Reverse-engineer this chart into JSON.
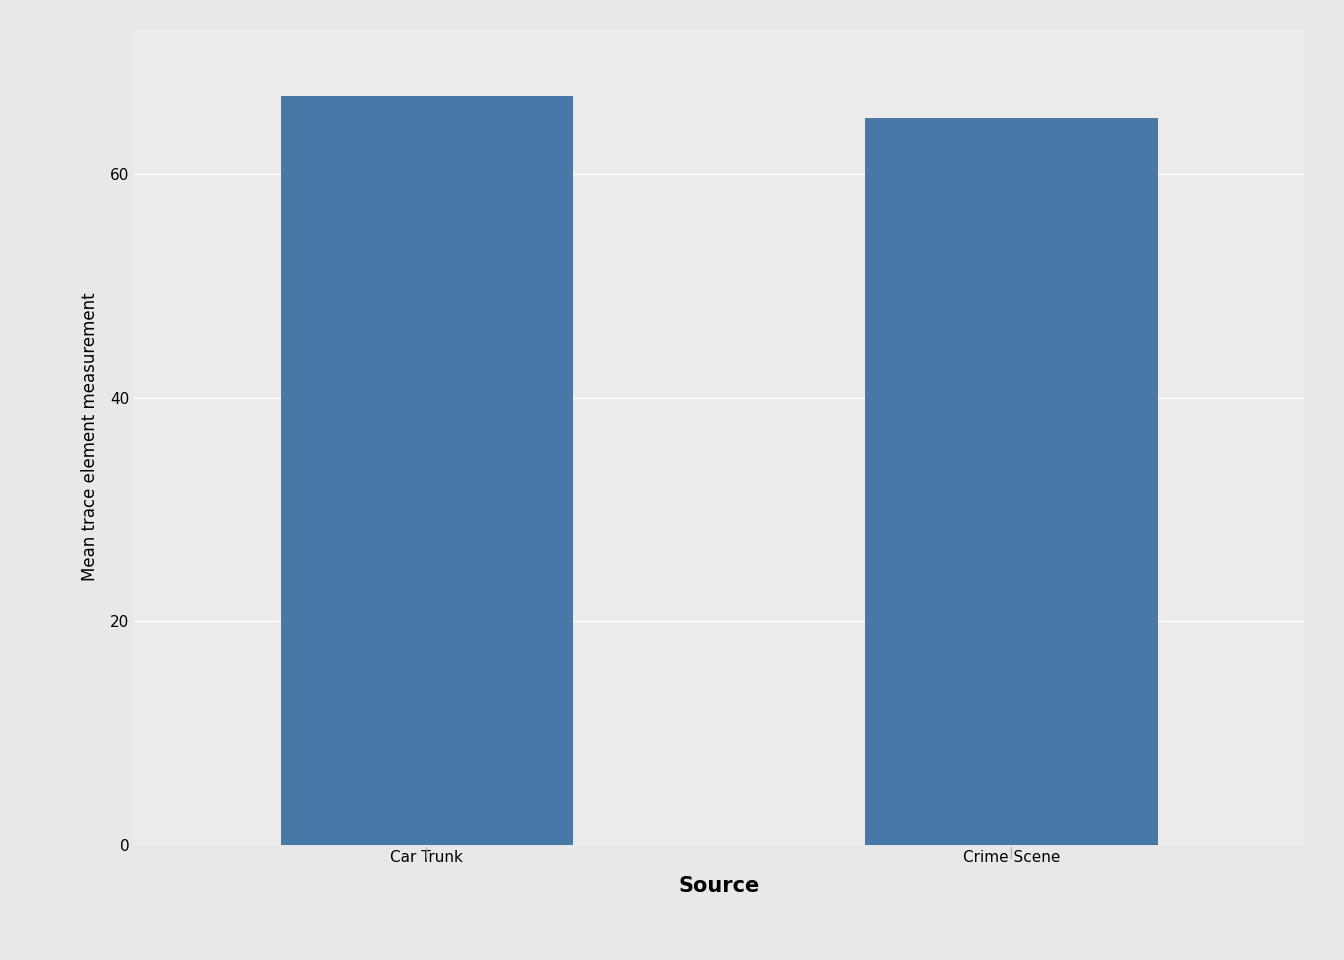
{
  "categories": [
    "Car Trunk",
    "Crime Scene"
  ],
  "values": [
    67.0,
    65.0
  ],
  "bar_color": "#4878a8",
  "bar_width": 0.5,
  "xlabel": "Source",
  "ylabel": "Mean trace element measurement",
  "ylim": [
    0,
    73
  ],
  "yticks": [
    0,
    20,
    40,
    60
  ],
  "outer_bg": "#e8e8e8",
  "panel_bg": "#ebebeb",
  "grid_color": "#ffffff",
  "xlabel_fontsize": 15,
  "ylabel_fontsize": 12,
  "tick_fontsize": 11,
  "x_positions": [
    1,
    2
  ]
}
